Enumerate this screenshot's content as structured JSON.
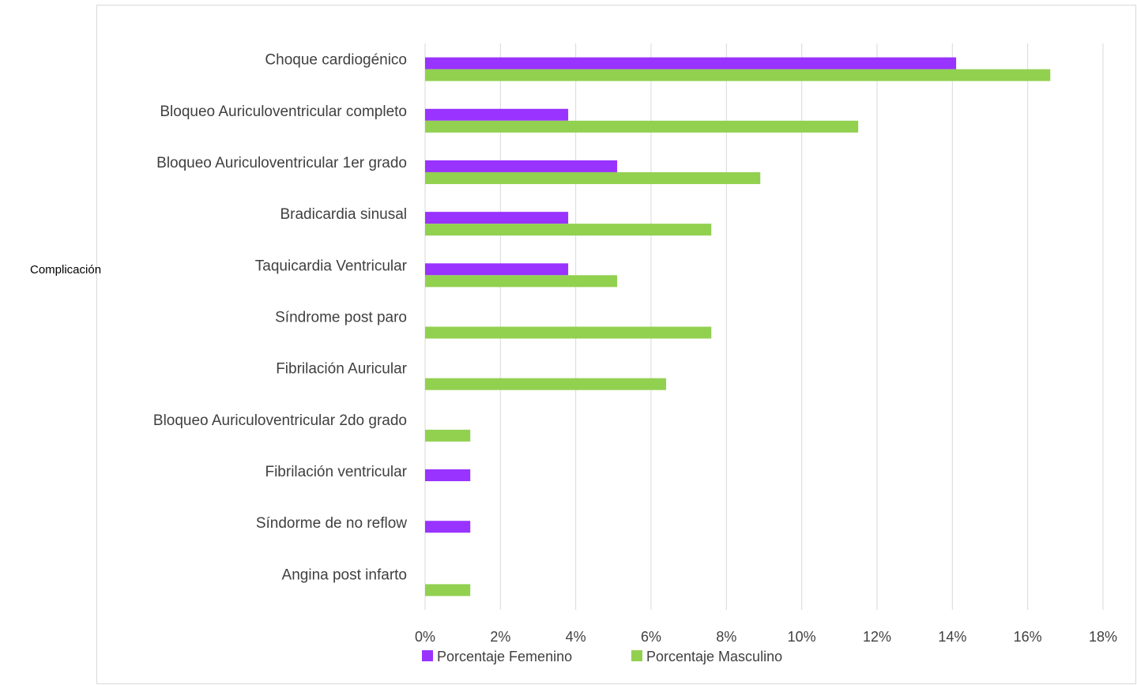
{
  "side_label": "Complicación",
  "chart_data": {
    "type": "bar",
    "orientation": "horizontal",
    "categories": [
      "Choque cardiogénico",
      "Bloqueo Auriculoventricular completo",
      "Bloqueo Auriculoventricular 1er grado",
      "Bradicardia sinusal",
      "Taquicardia Ventricular",
      "Síndrome post paro",
      "Fibrilación Auricular",
      "Bloqueo Auriculoventricular 2do grado",
      "Fibrilación ventricular",
      "Síndorme de no reflow",
      "Angina post infarto"
    ],
    "series": [
      {
        "name": "Porcentaje Femenino",
        "color": "#9933ff",
        "values": [
          14.1,
          3.8,
          5.1,
          3.8,
          3.8,
          0,
          0,
          0,
          1.2,
          1.2,
          0
        ]
      },
      {
        "name": "Porcentaje Masculino",
        "color": "#92d050",
        "values": [
          16.6,
          11.5,
          8.9,
          7.6,
          5.1,
          7.6,
          6.4,
          1.2,
          0,
          0,
          1.2
        ]
      }
    ],
    "xlim": [
      0,
      18
    ],
    "xticks": [
      "0%",
      "2%",
      "4%",
      "6%",
      "8%",
      "10%",
      "12%",
      "14%",
      "16%",
      "18%"
    ],
    "grid": true,
    "legend_position": "bottom",
    "title": "",
    "xlabel": "",
    "ylabel": ""
  }
}
